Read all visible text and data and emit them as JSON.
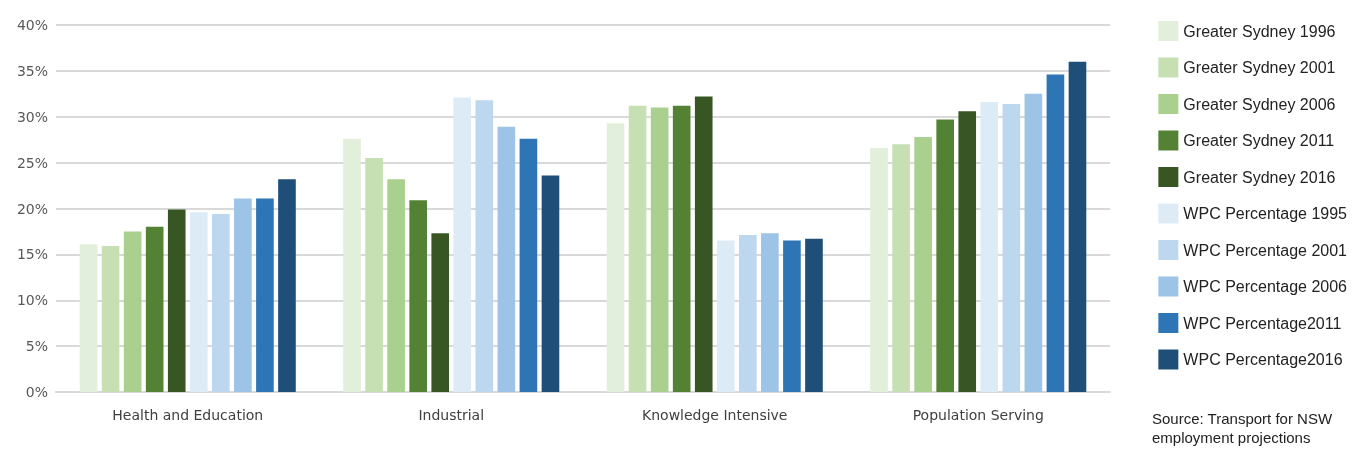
{
  "chart_data": {
    "type": "bar",
    "categories": [
      "Health and Education",
      "Industrial",
      "Knowledge Intensive",
      "Population Serving"
    ],
    "series": [
      {
        "name": "Greater Sydney 1996",
        "color": "#e2efda",
        "values": [
          16.1,
          27.6,
          29.3,
          26.6
        ]
      },
      {
        "name": "Greater Sydney 2001",
        "color": "#c6e0b4",
        "values": [
          15.9,
          25.5,
          31.2,
          27.0
        ]
      },
      {
        "name": "Greater Sydney 2006",
        "color": "#a9d08e",
        "values": [
          17.5,
          23.2,
          31.0,
          27.8
        ]
      },
      {
        "name": "Greater Sydney 2011",
        "color": "#548235",
        "values": [
          18.0,
          20.9,
          31.2,
          29.7
        ]
      },
      {
        "name": "Greater Sydney 2016",
        "color": "#375623",
        "values": [
          19.9,
          17.3,
          32.2,
          30.6
        ]
      },
      {
        "name": "WPC Percentage 1995",
        "color": "#ddebf7",
        "values": [
          19.6,
          32.1,
          16.5,
          31.6
        ]
      },
      {
        "name": "WPC Percentage 2001",
        "color": "#bdd7ee",
        "values": [
          19.4,
          31.8,
          17.1,
          31.4
        ]
      },
      {
        "name": "WPC Percentage 2006",
        "color": "#9dc3e6",
        "values": [
          21.1,
          28.9,
          17.3,
          32.5
        ]
      },
      {
        "name": "WPC Percentage2011",
        "color": "#2e75b6",
        "values": [
          21.1,
          27.6,
          16.5,
          34.6
        ]
      },
      {
        "name": "WPC Percentage2016",
        "color": "#1f4e79",
        "values": [
          23.2,
          23.6,
          16.7,
          36.0
        ]
      }
    ],
    "ylim": [
      0,
      40
    ],
    "yticks": [
      {
        "value": 0,
        "label": "0%"
      },
      {
        "value": 5,
        "label": "5%"
      },
      {
        "value": 10,
        "label": "10%"
      },
      {
        "value": 15,
        "label": "15%"
      },
      {
        "value": 20,
        "label": "20%"
      },
      {
        "value": 25,
        "label": "25%"
      },
      {
        "value": 30,
        "label": "30%"
      },
      {
        "value": 35,
        "label": "35%"
      },
      {
        "value": 40,
        "label": "40%"
      }
    ],
    "grid": "y",
    "legend": "right",
    "annotations": [
      "Source: Transport for NSW employment projections"
    ]
  }
}
